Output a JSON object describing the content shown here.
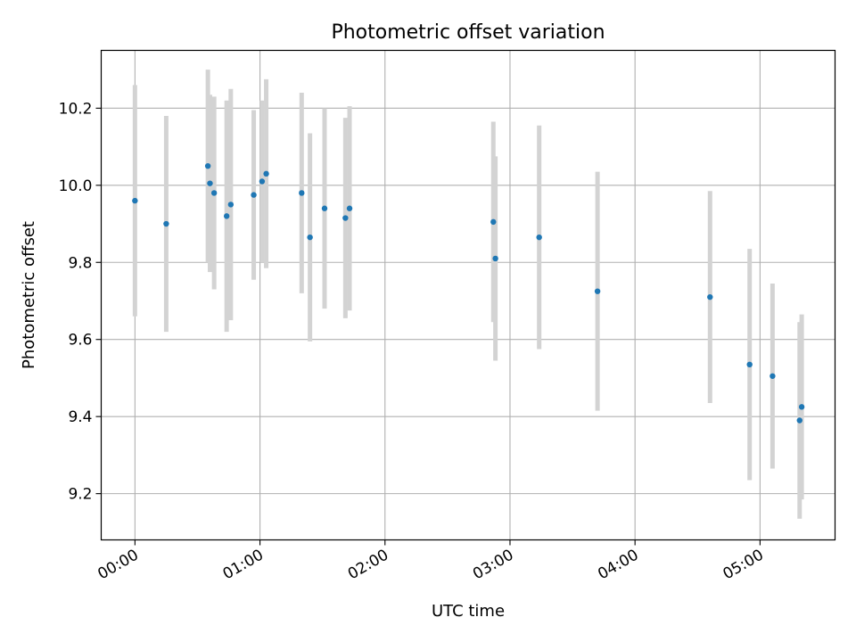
{
  "chart_data": {
    "type": "scatter",
    "title": "Photometric offset variation",
    "xlabel": "UTC time",
    "ylabel": "Photometric offset",
    "x_unit": "hours",
    "xlim": [
      -0.27,
      5.6
    ],
    "ylim": [
      9.08,
      10.35
    ],
    "grid": true,
    "xticks": [
      {
        "value": 0,
        "label": "00:00"
      },
      {
        "value": 1,
        "label": "01:00"
      },
      {
        "value": 2,
        "label": "02:00"
      },
      {
        "value": 3,
        "label": "03:00"
      },
      {
        "value": 4,
        "label": "04:00"
      },
      {
        "value": 5,
        "label": "05:00"
      }
    ],
    "yticks": [
      {
        "value": 9.2,
        "label": "9.2"
      },
      {
        "value": 9.4,
        "label": "9.4"
      },
      {
        "value": 9.6,
        "label": "9.6"
      },
      {
        "value": 9.8,
        "label": "9.8"
      },
      {
        "value": 10.0,
        "label": "10.0"
      },
      {
        "value": 10.2,
        "label": "10.2"
      }
    ],
    "marker_color": "#1f77b4",
    "errorbar_color": "#d3d3d3",
    "points": [
      {
        "x": "00:00",
        "y": 9.96,
        "err": 0.3
      },
      {
        "x": "00:15",
        "y": 9.9,
        "err": 0.28
      },
      {
        "x": "00:35",
        "y": 10.05,
        "err": 0.25
      },
      {
        "x": "00:36",
        "y": 10.005,
        "err": 0.23
      },
      {
        "x": "00:38",
        "y": 9.98,
        "err": 0.25
      },
      {
        "x": "00:44",
        "y": 9.92,
        "err": 0.3
      },
      {
        "x": "00:46",
        "y": 9.95,
        "err": 0.3
      },
      {
        "x": "00:57",
        "y": 9.975,
        "err": 0.22
      },
      {
        "x": "01:01",
        "y": 10.01,
        "err": 0.21
      },
      {
        "x": "01:03",
        "y": 10.03,
        "err": 0.245
      },
      {
        "x": "01:20",
        "y": 9.98,
        "err": 0.26
      },
      {
        "x": "01:24",
        "y": 9.865,
        "err": 0.27
      },
      {
        "x": "01:31",
        "y": 9.94,
        "err": 0.26
      },
      {
        "x": "01:41",
        "y": 9.915,
        "err": 0.26
      },
      {
        "x": "01:43",
        "y": 9.94,
        "err": 0.265
      },
      {
        "x": "02:52",
        "y": 9.905,
        "err": 0.26
      },
      {
        "x": "02:53",
        "y": 9.81,
        "err": 0.265
      },
      {
        "x": "03:14",
        "y": 9.865,
        "err": 0.29
      },
      {
        "x": "03:42",
        "y": 9.725,
        "err": 0.31
      },
      {
        "x": "04:36",
        "y": 9.71,
        "err": 0.275
      },
      {
        "x": "04:55",
        "y": 9.535,
        "err": 0.3
      },
      {
        "x": "05:06",
        "y": 9.505,
        "err": 0.24
      },
      {
        "x": "05:19",
        "y": 9.39,
        "err": 0.255
      },
      {
        "x": "05:20",
        "y": 9.425,
        "err": 0.24
      }
    ]
  }
}
